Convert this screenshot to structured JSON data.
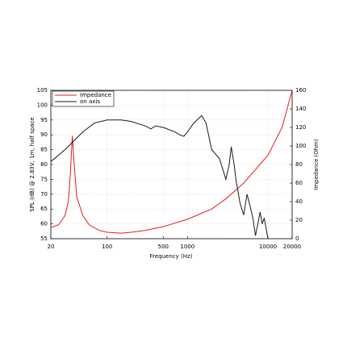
{
  "chart_data": {
    "type": "line",
    "xlabel": "Frequency (Hz)",
    "ylabel": "SPL (dB) @ 2.83V, 1m, half space",
    "y2label": "Impedance (Ohm)",
    "xscale": "log",
    "xlim": [
      20,
      20000
    ],
    "xticks": [
      20,
      100,
      500,
      1000,
      10000,
      20000
    ],
    "ylim": [
      55,
      105
    ],
    "yticks": [
      55,
      60,
      65,
      70,
      75,
      80,
      85,
      90,
      95,
      100,
      105
    ],
    "y2lim": [
      0,
      160
    ],
    "y2ticks": [
      0,
      20,
      40,
      60,
      80,
      100,
      120,
      140,
      160
    ],
    "grid": true,
    "legend": "upper left",
    "series": [
      {
        "name": "Impedance",
        "color": "#e8191c",
        "axis": "y2",
        "x": [
          20,
          25,
          30,
          33,
          35,
          37,
          39,
          42,
          50,
          60,
          80,
          100,
          150,
          200,
          300,
          500,
          1000,
          2000,
          3000,
          5000,
          10000,
          15000,
          20000
        ],
        "values": [
          12,
          15,
          25,
          40,
          70,
          111,
          80,
          45,
          25,
          15,
          9,
          7,
          6,
          7,
          9,
          13,
          21,
          32,
          43,
          60,
          90,
          120,
          160
        ]
      },
      {
        "name": "on axis",
        "color": "#1a1a1a",
        "x": [
          20,
          30,
          50,
          70,
          100,
          150,
          200,
          300,
          350,
          400,
          500,
          700,
          800,
          900,
          1000,
          1200,
          1500,
          1700,
          2000,
          2500,
          3000,
          3300,
          3500,
          3800,
          4000,
          4500,
          5000,
          5500,
          6000,
          6500,
          7000,
          7500,
          8000,
          8500,
          9000,
          10000
        ],
        "values": [
          81,
          85,
          91,
          94,
          95,
          95,
          94.5,
          93,
          92,
          93,
          92.5,
          91,
          90,
          89.5,
          91,
          94,
          96.5,
          94,
          85,
          82,
          75,
          80,
          86,
          80,
          75,
          67,
          63,
          70,
          66,
          62,
          56,
          60,
          64,
          60,
          62,
          55
        ]
      }
    ]
  }
}
